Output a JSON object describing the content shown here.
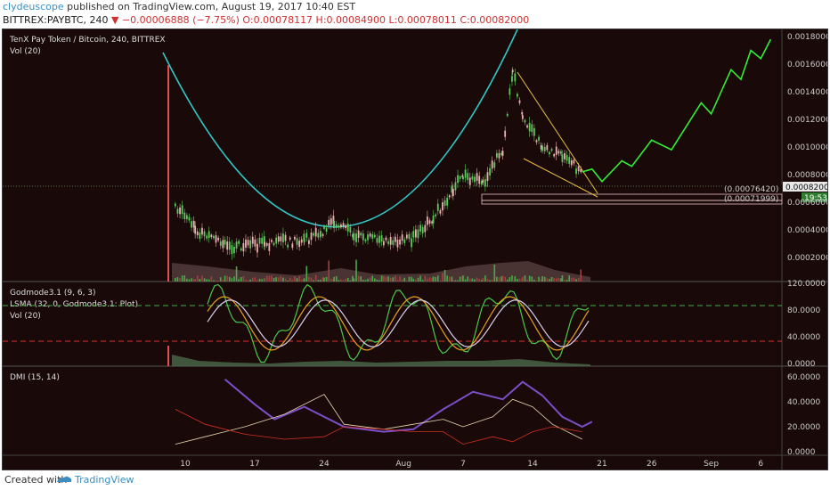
{
  "header": {
    "user": "clydeuscope",
    "published_text": "published on TradingView.com, August 19, 2017 10:40 EST",
    "symbol": "BITTREX:PAYBTC, 240",
    "change": "−0.00006888 (−7.75%)",
    "ohlc": "O:0.00078117 H:0.00084900 L:0.00078011 C:0.00082000"
  },
  "footer": {
    "created": "Created with",
    "brand": "TradingView"
  },
  "colors": {
    "background": "#1a0909",
    "up": "#5cc95c",
    "down": "#e06060",
    "arc": "#30c8c8",
    "projection": "#33ee33",
    "wedge": "#e8c040"
  },
  "chart_data": [
    {
      "type": "candlestick",
      "title": "TenX Pay Token / Bitcoin, 240, BITTREX",
      "subtitle": "Vol (20)",
      "x_ticks": [
        "10",
        "17",
        "24",
        "Aug",
        "7",
        "14",
        "21",
        "26",
        "Sep",
        "6"
      ],
      "y_ticks": [
        "0.00180000",
        "0.00160000",
        "0.00140000",
        "0.00120000",
        "0.00100000",
        "0.00080000",
        "0.00060000",
        "0.00040000",
        "0.00020000"
      ],
      "ylim": [
        0.0002,
        0.0018
      ],
      "price_labels": [
        "(0.00076420)",
        "(0.00071999)",
        "0.00082000",
        "19:53"
      ],
      "close_path": [
        {
          "x": "Jul 9",
          "y": 0.00058
        },
        {
          "x": "Jul 11",
          "y": 0.0004
        },
        {
          "x": "Jul 14",
          "y": 0.00028
        },
        {
          "x": "Jul 18",
          "y": 0.0003
        },
        {
          "x": "Jul 22",
          "y": 0.00032
        },
        {
          "x": "Jul 24",
          "y": 0.0004
        },
        {
          "x": "Jul 25",
          "y": 0.00046
        },
        {
          "x": "Jul 27",
          "y": 0.00036
        },
        {
          "x": "Jul 30",
          "y": 0.00032
        },
        {
          "x": "Aug 2",
          "y": 0.00034
        },
        {
          "x": "Aug 4",
          "y": 0.00048
        },
        {
          "x": "Aug 6",
          "y": 0.0007
        },
        {
          "x": "Aug 7",
          "y": 0.00078
        },
        {
          "x": "Aug 9",
          "y": 0.00074
        },
        {
          "x": "Aug 11",
          "y": 0.00098
        },
        {
          "x": "Aug 12",
          "y": 0.00156
        },
        {
          "x": "Aug 13",
          "y": 0.0012
        },
        {
          "x": "Aug 15",
          "y": 0.001
        },
        {
          "x": "Aug 17",
          "y": 0.00094
        },
        {
          "x": "Aug 19",
          "y": 0.00082
        }
      ],
      "projection": [
        {
          "x": "Aug 20",
          "y": 0.00084
        },
        {
          "x": "Aug 21",
          "y": 0.00075
        },
        {
          "x": "Aug 23",
          "y": 0.0009
        },
        {
          "x": "Aug 24",
          "y": 0.00086
        },
        {
          "x": "Aug 26",
          "y": 0.00105
        },
        {
          "x": "Aug 28",
          "y": 0.00098
        },
        {
          "x": "Aug 31",
          "y": 0.00132
        },
        {
          "x": "Sep 1",
          "y": 0.00124
        },
        {
          "x": "Sep 3",
          "y": 0.00156
        },
        {
          "x": "Sep 4",
          "y": 0.00149
        },
        {
          "x": "Sep 5",
          "y": 0.0017
        },
        {
          "x": "Sep 6",
          "y": 0.00164
        },
        {
          "x": "Sep 7",
          "y": 0.00178
        }
      ]
    },
    {
      "type": "line",
      "title": "Godmode3.1 (9, 6, 3)",
      "subtitle": "LSMA (32, 0, Godmode3.1: Plot)",
      "subtitle2": "Vol (20)",
      "y_ticks": [
        "120.0000",
        "80.0000",
        "40.0000",
        "0.0000"
      ],
      "ylim": [
        0,
        120
      ],
      "levels": [
        80,
        25
      ]
    },
    {
      "type": "line",
      "title": "DMI (15, 14)",
      "y_ticks": [
        "60.0000",
        "40.0000",
        "20.0000",
        "0.0000"
      ],
      "ylim": [
        0,
        60
      ],
      "series": [
        {
          "color": "#7b4fc8",
          "values": [
            [
              14,
              58
            ],
            [
              17,
              38
            ],
            [
              19,
              26
            ],
            [
              22,
              36
            ],
            [
              26,
              20
            ],
            [
              30,
              16
            ],
            [
              2,
              18
            ],
            [
              5,
              34
            ],
            [
              8,
              48
            ],
            [
              11,
              42
            ],
            [
              13,
              56
            ],
            [
              15,
              45
            ],
            [
              17,
              28
            ],
            [
              19,
              20
            ],
            [
              20,
              24
            ]
          ]
        },
        {
          "color": "#e8d8b0",
          "values": [
            [
              9,
              6
            ],
            [
              12,
              12
            ],
            [
              16,
              20
            ],
            [
              20,
              30
            ],
            [
              24,
              46
            ],
            [
              26,
              22
            ],
            [
              30,
              18
            ],
            [
              2,
              22
            ],
            [
              5,
              26
            ],
            [
              7,
              20
            ],
            [
              10,
              28
            ],
            [
              12,
              42
            ],
            [
              14,
              36
            ],
            [
              16,
              22
            ],
            [
              19,
              10
            ]
          ]
        },
        {
          "color": "#d03020",
          "values": [
            [
              9,
              34
            ],
            [
              12,
              22
            ],
            [
              16,
              14
            ],
            [
              20,
              10
            ],
            [
              24,
              12
            ],
            [
              26,
              20
            ],
            [
              30,
              18
            ],
            [
              2,
              16
            ],
            [
              5,
              16
            ],
            [
              7,
              6
            ],
            [
              10,
              12
            ],
            [
              12,
              8
            ],
            [
              14,
              16
            ],
            [
              16,
              20
            ],
            [
              19,
              16
            ]
          ]
        }
      ]
    }
  ]
}
